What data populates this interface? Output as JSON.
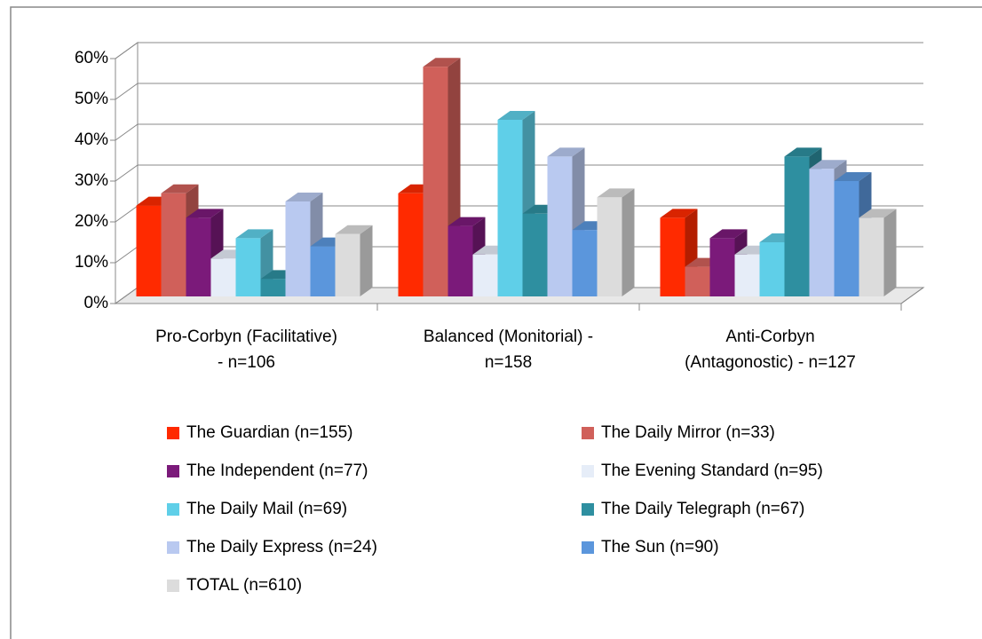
{
  "chart_data": {
    "type": "bar3d",
    "categories": [
      "Pro-Corbyn (Facilitative)\n- n=106",
      "Balanced (Monitorial) -\nn=158",
      "Anti-Corbyn\n(Antagonostic) - n=127"
    ],
    "series": [
      {
        "name": "The Guardian (n=155)",
        "color": "#ff2a00",
        "values": [
          24,
          27,
          21
        ]
      },
      {
        "name": "The Daily Mirror (n=33)",
        "color": "#d0605a",
        "values": [
          27,
          58,
          9
        ]
      },
      {
        "name": "The Independent (n=77)",
        "color": "#7b1a7a",
        "values": [
          21,
          19,
          16
        ]
      },
      {
        "name": "The Evening Standard (n=95)",
        "color": "#e6edf8",
        "values": [
          11,
          12,
          12
        ]
      },
      {
        "name": "The Daily Mail (n=69)",
        "color": "#5fcfe8",
        "values": [
          16,
          45,
          15
        ]
      },
      {
        "name": "The Daily Telegraph (n=67)",
        "color": "#2e8fa0",
        "values": [
          6,
          22,
          36
        ]
      },
      {
        "name": "The Daily Express (n=24)",
        "color": "#b9c9f0",
        "values": [
          25,
          36,
          33
        ]
      },
      {
        "name": "The Sun (n=90)",
        "color": "#5b96dc",
        "values": [
          14,
          18,
          30
        ]
      },
      {
        "name": "TOTAL (n=610)",
        "color": "#dcdcdc",
        "values": [
          17,
          26,
          21
        ]
      }
    ],
    "ylim": [
      0,
      60
    ],
    "yticks": [
      {
        "value": 0,
        "label": "0%"
      },
      {
        "value": 10,
        "label": "10%"
      },
      {
        "value": 20,
        "label": "20%"
      },
      {
        "value": 30,
        "label": "30%"
      },
      {
        "value": 40,
        "label": "40%"
      },
      {
        "value": 50,
        "label": "50%"
      },
      {
        "value": 60,
        "label": "60%"
      }
    ],
    "grid": true
  }
}
